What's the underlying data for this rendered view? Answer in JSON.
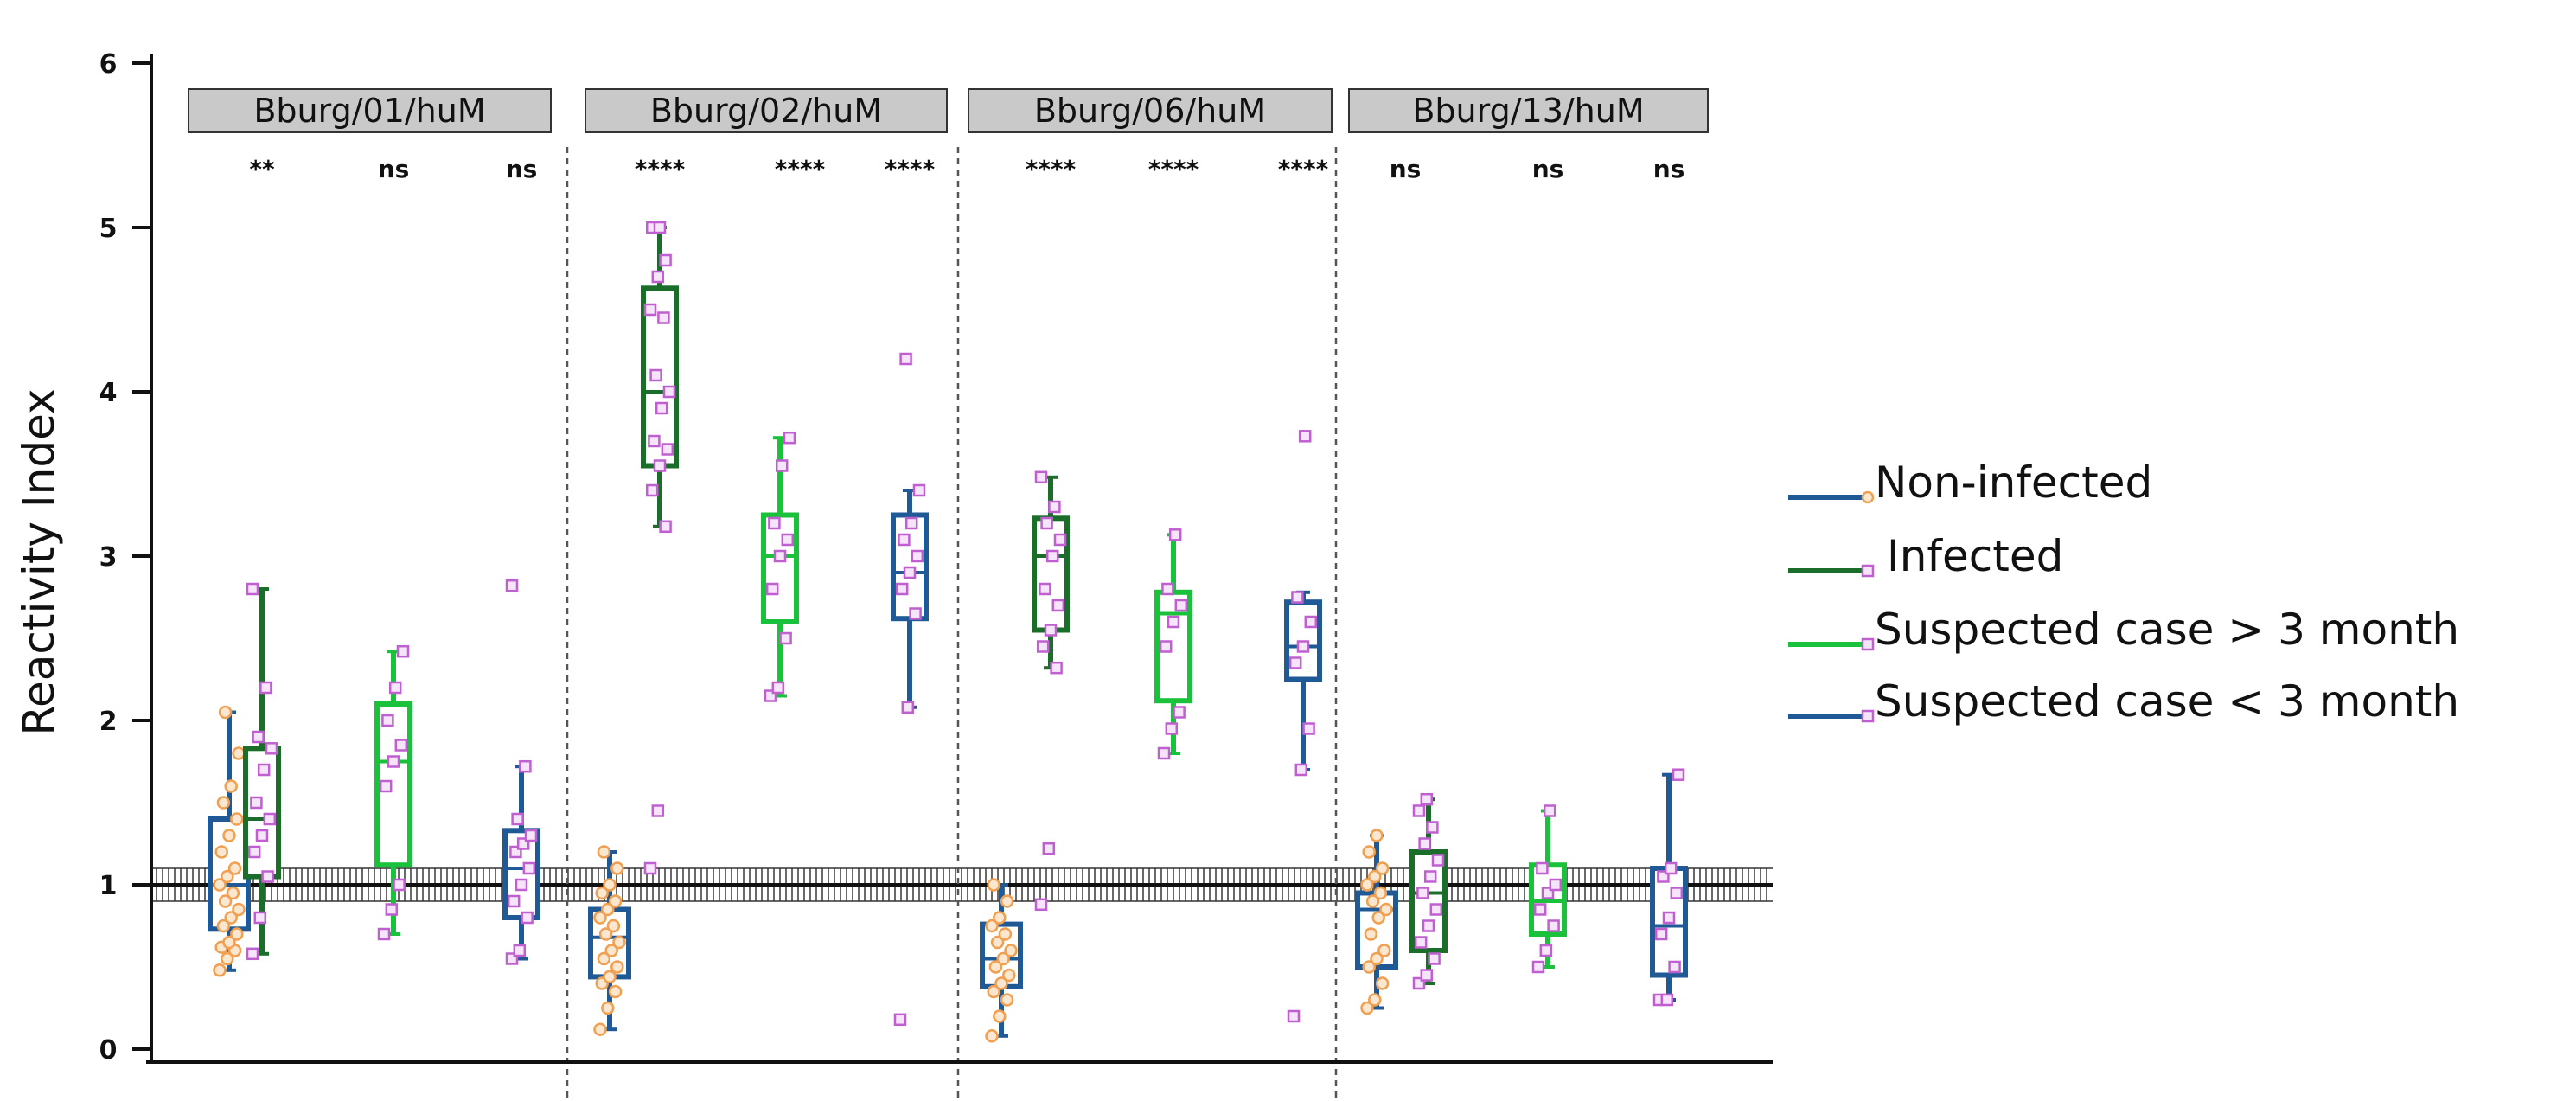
{
  "chart_data": {
    "type": "box",
    "ylabel": "Reactivity Index",
    "ylim": [
      0,
      6
    ],
    "yticks": [
      "0",
      "1",
      "2",
      "3",
      "4",
      "5",
      "6"
    ],
    "cutoff": {
      "value": 1.0,
      "band": [
        0.9,
        1.1
      ]
    },
    "colors": {
      "non_infected": "#1f5a96",
      "infected": "#1a6e2a",
      "suspected_gt3": "#19c23a",
      "suspected_lt3": "#1f5a96",
      "orange_marker": "#f0a050",
      "purple_marker": "#c060d0"
    },
    "legend": [
      {
        "label": "Non-infected",
        "key": "non_infected"
      },
      {
        "label": "Infected",
        "key": "infected"
      },
      {
        "label": "Suspected case > 3 month",
        "key": "suspected_gt3"
      },
      {
        "label": "Suspected case < 3 month",
        "key": "suspected_lt3"
      }
    ],
    "panels": [
      {
        "label": "Bburg/01/huM",
        "groups": [
          {
            "key": "non_infected",
            "box": [
              0.73,
              1.0,
              1.4
            ],
            "whisker": [
              0.48,
              2.05
            ],
            "sig": "",
            "points": [
              0.48,
              0.55,
              0.6,
              0.62,
              0.65,
              0.7,
              0.75,
              0.8,
              0.85,
              0.9,
              0.95,
              1.0,
              1.05,
              1.1,
              1.2,
              1.3,
              1.4,
              1.5,
              1.6,
              1.8,
              2.05
            ]
          },
          {
            "key": "infected",
            "box": [
              1.05,
              1.4,
              1.83
            ],
            "whisker": [
              0.58,
              2.8
            ],
            "sig": "**",
            "points": [
              0.58,
              0.8,
              1.05,
              1.2,
              1.3,
              1.4,
              1.5,
              1.7,
              1.83,
              1.9,
              2.2,
              2.8
            ]
          },
          {
            "key": "suspected_gt3",
            "box": [
              1.12,
              1.75,
              2.1
            ],
            "whisker": [
              0.7,
              2.42
            ],
            "sig": "ns",
            "points": [
              0.7,
              0.85,
              1.0,
              1.6,
              1.75,
              1.85,
              2.0,
              2.2,
              2.42
            ]
          },
          {
            "key": "suspected_lt3",
            "box": [
              0.8,
              1.1,
              1.33
            ],
            "whisker": [
              0.55,
              1.72
            ],
            "sig": "ns",
            "points": [
              0.55,
              0.6,
              0.8,
              0.9,
              1.0,
              1.1,
              1.2,
              1.25,
              1.3,
              1.4,
              1.72,
              2.82
            ]
          }
        ]
      },
      {
        "label": "Bburg/02/huM",
        "groups": [
          {
            "key": "non_infected",
            "box": [
              0.44,
              0.68,
              0.85
            ],
            "whisker": [
              0.12,
              1.2
            ],
            "sig": "",
            "points": [
              0.12,
              0.25,
              0.35,
              0.4,
              0.44,
              0.5,
              0.55,
              0.6,
              0.65,
              0.7,
              0.75,
              0.8,
              0.85,
              0.9,
              0.95,
              1.0,
              1.1,
              1.2
            ]
          },
          {
            "key": "infected",
            "box": [
              3.55,
              4.0,
              4.63
            ],
            "whisker": [
              3.18,
              5.0
            ],
            "sig": "****",
            "points": [
              1.1,
              1.45,
              3.18,
              3.4,
              3.55,
              3.65,
              3.7,
              3.9,
              4.0,
              4.1,
              4.45,
              4.5,
              4.7,
              4.8,
              5.0,
              5.0
            ]
          },
          {
            "key": "suspected_gt3",
            "box": [
              2.6,
              3.0,
              3.25
            ],
            "whisker": [
              2.15,
              3.72
            ],
            "sig": "****",
            "points": [
              2.15,
              2.2,
              2.5,
              2.8,
              3.0,
              3.1,
              3.2,
              3.55,
              3.72
            ]
          },
          {
            "key": "suspected_lt3",
            "box": [
              2.62,
              2.9,
              3.25
            ],
            "whisker": [
              2.08,
              3.4
            ],
            "sig": "****",
            "points": [
              0.18,
              2.08,
              2.65,
              2.8,
              2.9,
              3.0,
              3.1,
              3.2,
              3.4,
              4.2
            ]
          }
        ]
      },
      {
        "label": "Bburg/06/huM",
        "groups": [
          {
            "key": "non_infected",
            "box": [
              0.38,
              0.55,
              0.76
            ],
            "whisker": [
              0.08,
              1.0
            ],
            "sig": "",
            "points": [
              0.08,
              0.2,
              0.3,
              0.35,
              0.4,
              0.45,
              0.5,
              0.55,
              0.6,
              0.65,
              0.7,
              0.75,
              0.8,
              0.9,
              1.0
            ]
          },
          {
            "key": "infected",
            "box": [
              2.55,
              3.0,
              3.23
            ],
            "whisker": [
              2.32,
              3.48
            ],
            "sig": "****",
            "points": [
              0.88,
              1.22,
              2.32,
              2.45,
              2.55,
              2.7,
              2.8,
              3.0,
              3.1,
              3.2,
              3.3,
              3.48
            ]
          },
          {
            "key": "suspected_gt3",
            "box": [
              2.12,
              2.65,
              2.78
            ],
            "whisker": [
              1.8,
              3.13
            ],
            "sig": "****",
            "points": [
              1.8,
              1.95,
              2.05,
              2.45,
              2.6,
              2.7,
              2.8,
              3.13
            ]
          },
          {
            "key": "suspected_lt3",
            "box": [
              2.25,
              2.45,
              2.72
            ],
            "whisker": [
              1.7,
              2.78
            ],
            "sig": "****",
            "points": [
              0.2,
              1.7,
              1.95,
              2.35,
              2.45,
              2.6,
              2.75,
              3.73
            ]
          }
        ]
      },
      {
        "label": "Bburg/13/huM",
        "groups": [
          {
            "key": "non_infected",
            "box": [
              0.5,
              0.85,
              0.95
            ],
            "whisker": [
              0.25,
              1.3
            ],
            "sig": "",
            "points": [
              0.25,
              0.3,
              0.4,
              0.5,
              0.55,
              0.6,
              0.7,
              0.8,
              0.85,
              0.9,
              0.95,
              1.0,
              1.05,
              1.1,
              1.2,
              1.3
            ]
          },
          {
            "key": "infected",
            "box": [
              0.6,
              0.95,
              1.2
            ],
            "whisker": [
              0.4,
              1.52
            ],
            "sig": "ns",
            "points": [
              0.4,
              0.45,
              0.55,
              0.65,
              0.75,
              0.85,
              0.95,
              1.05,
              1.15,
              1.25,
              1.35,
              1.45,
              1.52
            ]
          },
          {
            "key": "suspected_gt3",
            "box": [
              0.7,
              0.9,
              1.12
            ],
            "whisker": [
              0.5,
              1.45
            ],
            "sig": "ns",
            "points": [
              0.5,
              0.6,
              0.75,
              0.85,
              0.95,
              1.0,
              1.1,
              1.45
            ]
          },
          {
            "key": "suspected_lt3",
            "box": [
              0.45,
              0.75,
              1.1
            ],
            "whisker": [
              0.3,
              1.67
            ],
            "sig": "ns",
            "points": [
              0.3,
              0.3,
              0.5,
              0.7,
              0.8,
              0.95,
              1.05,
              1.1,
              1.67
            ]
          }
        ]
      }
    ]
  }
}
